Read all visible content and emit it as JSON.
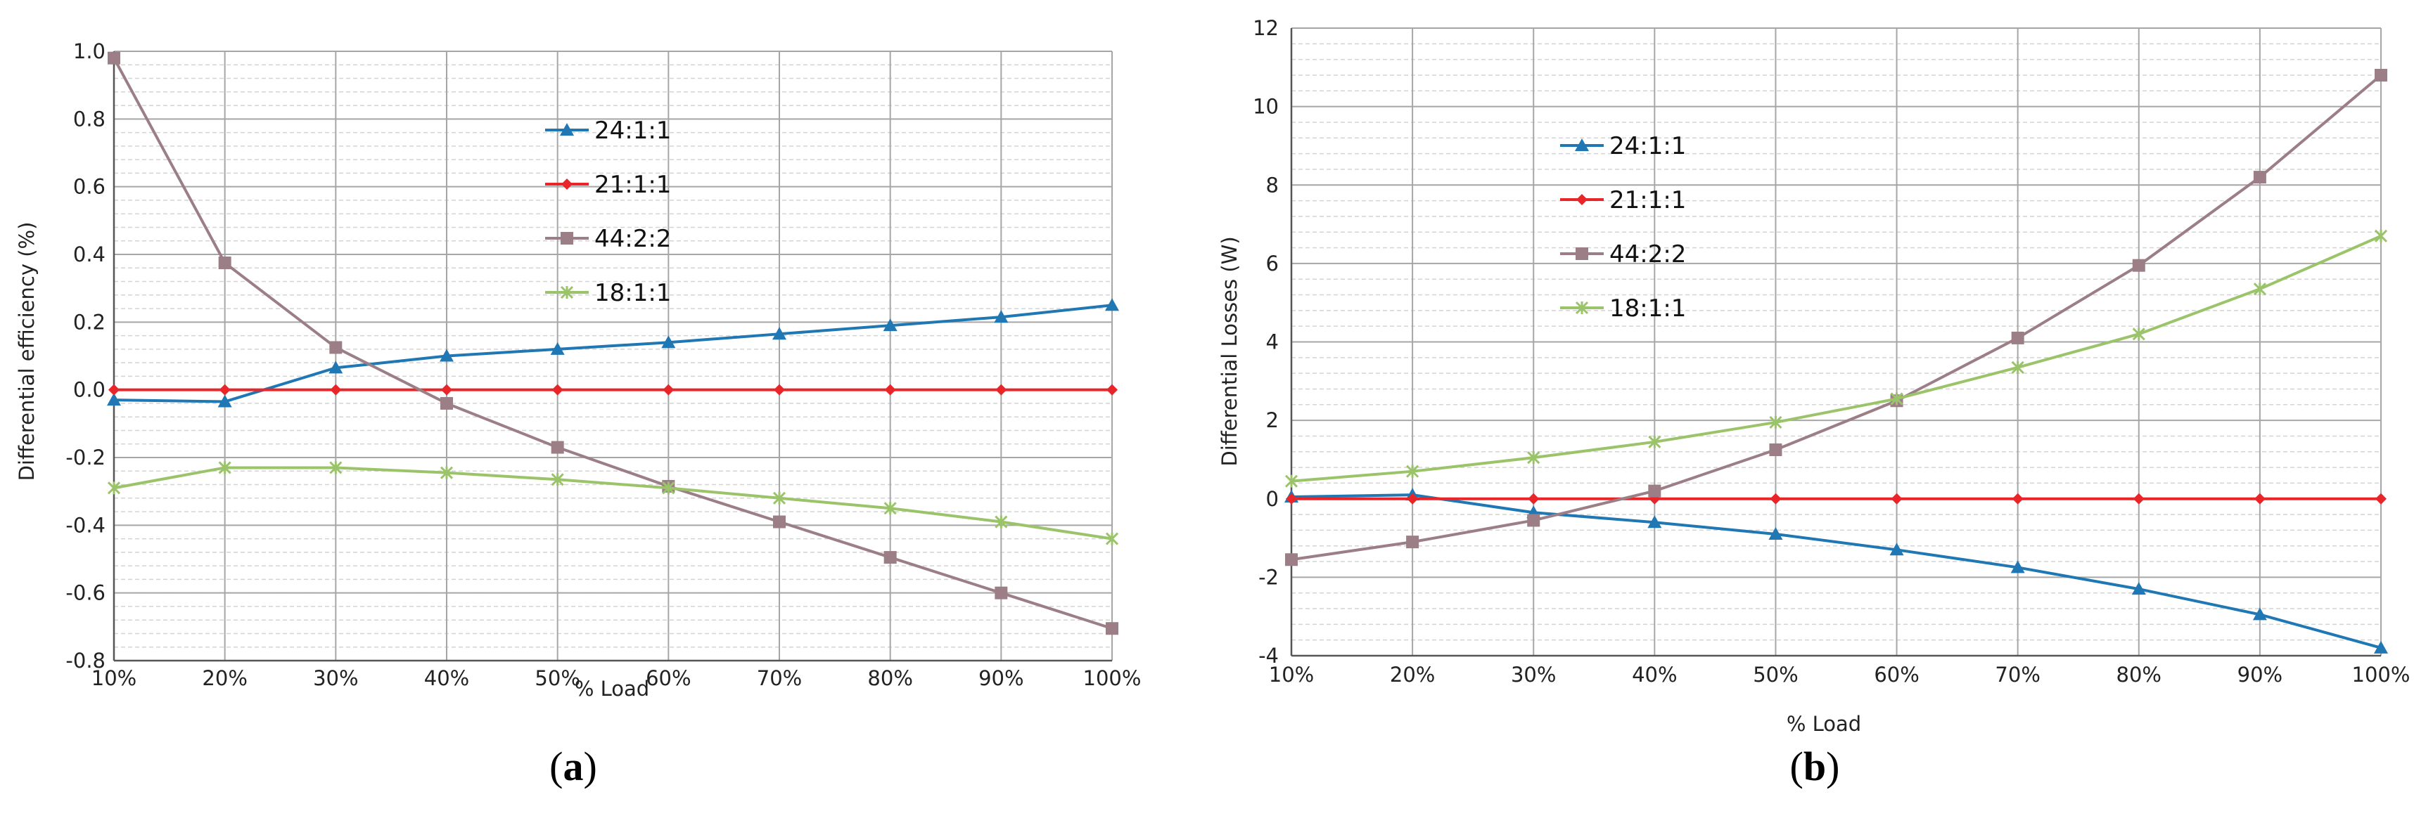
{
  "colors": {
    "grid_major": "#a6a6a6",
    "grid_minor": "#d4d4d4",
    "axis": "#555555"
  },
  "chart_data": [
    {
      "type": "line",
      "panel": "a",
      "panel_label": {
        "open": "(",
        "letter": "a",
        "close": ")"
      },
      "xlabel": "% Load",
      "ylabel": "Differential efficiency (%)",
      "categories": [
        "10%",
        "20%",
        "30%",
        "40%",
        "50%",
        "60%",
        "70%",
        "80%",
        "90%",
        "100%"
      ],
      "ylim": [
        -0.8,
        1.0
      ],
      "yticks": [
        -0.8,
        -0.6,
        -0.4,
        -0.2,
        0.0,
        0.2,
        0.4,
        0.6,
        0.8,
        1.0
      ],
      "ytick_labels": [
        "-0.8",
        "-0.6",
        "-0.4",
        "-0.2",
        "0.0",
        "0.2",
        "0.4",
        "0.6",
        "0.8",
        "1.0"
      ],
      "minor_divisions": 5,
      "grid": true,
      "legend_position": "upper-center",
      "series": [
        {
          "name": "24:1:1",
          "color": "#1f77b4",
          "marker": "triangle",
          "values": [
            -0.03,
            -0.035,
            0.065,
            0.1,
            0.12,
            0.14,
            0.165,
            0.19,
            0.215,
            0.25
          ]
        },
        {
          "name": "21:1:1",
          "color": "#e8262a",
          "marker": "diamond",
          "values": [
            0,
            0,
            0,
            0,
            0,
            0,
            0,
            0,
            0,
            0
          ]
        },
        {
          "name": "44:2:2",
          "color": "#9b7e86",
          "marker": "square",
          "values": [
            0.98,
            0.375,
            0.125,
            -0.04,
            -0.17,
            -0.285,
            -0.39,
            -0.495,
            -0.6,
            -0.705
          ]
        },
        {
          "name": "18:1:1",
          "color": "#9bc46a",
          "marker": "x",
          "values": [
            -0.29,
            -0.23,
            -0.23,
            -0.245,
            -0.265,
            -0.29,
            -0.32,
            -0.35,
            -0.39,
            -0.44
          ]
        }
      ]
    },
    {
      "type": "line",
      "panel": "b",
      "panel_label": {
        "open": "(",
        "letter": "b",
        "close": ")"
      },
      "xlabel": "% Load",
      "ylabel": "Differential Losses (W)",
      "categories": [
        "10%",
        "20%",
        "30%",
        "40%",
        "50%",
        "60%",
        "70%",
        "80%",
        "90%",
        "100%"
      ],
      "ylim": [
        -4,
        12
      ],
      "yticks": [
        -4,
        -2,
        0,
        2,
        4,
        6,
        8,
        10,
        12
      ],
      "ytick_labels": [
        "-4",
        "-2",
        "0",
        "2",
        "4",
        "6",
        "8",
        "10",
        "12"
      ],
      "minor_divisions": 5,
      "grid": true,
      "legend_position": "upper-left",
      "series": [
        {
          "name": "24:1:1",
          "color": "#1f77b4",
          "marker": "triangle",
          "values": [
            0.05,
            0.1,
            -0.35,
            -0.6,
            -0.9,
            -1.3,
            -1.75,
            -2.3,
            -2.95,
            -3.8
          ]
        },
        {
          "name": "21:1:1",
          "color": "#e8262a",
          "marker": "diamond",
          "values": [
            0,
            0,
            0,
            0,
            0,
            0,
            0,
            0,
            0,
            0
          ]
        },
        {
          "name": "44:2:2",
          "color": "#9b7e86",
          "marker": "square",
          "values": [
            -1.55,
            -1.1,
            -0.55,
            0.2,
            1.25,
            2.5,
            4.1,
            5.95,
            8.2,
            10.8
          ]
        },
        {
          "name": "18:1:1",
          "color": "#9bc46a",
          "marker": "x",
          "values": [
            0.45,
            0.7,
            1.05,
            1.45,
            1.95,
            2.55,
            3.35,
            4.2,
            5.35,
            6.7
          ]
        }
      ]
    }
  ]
}
